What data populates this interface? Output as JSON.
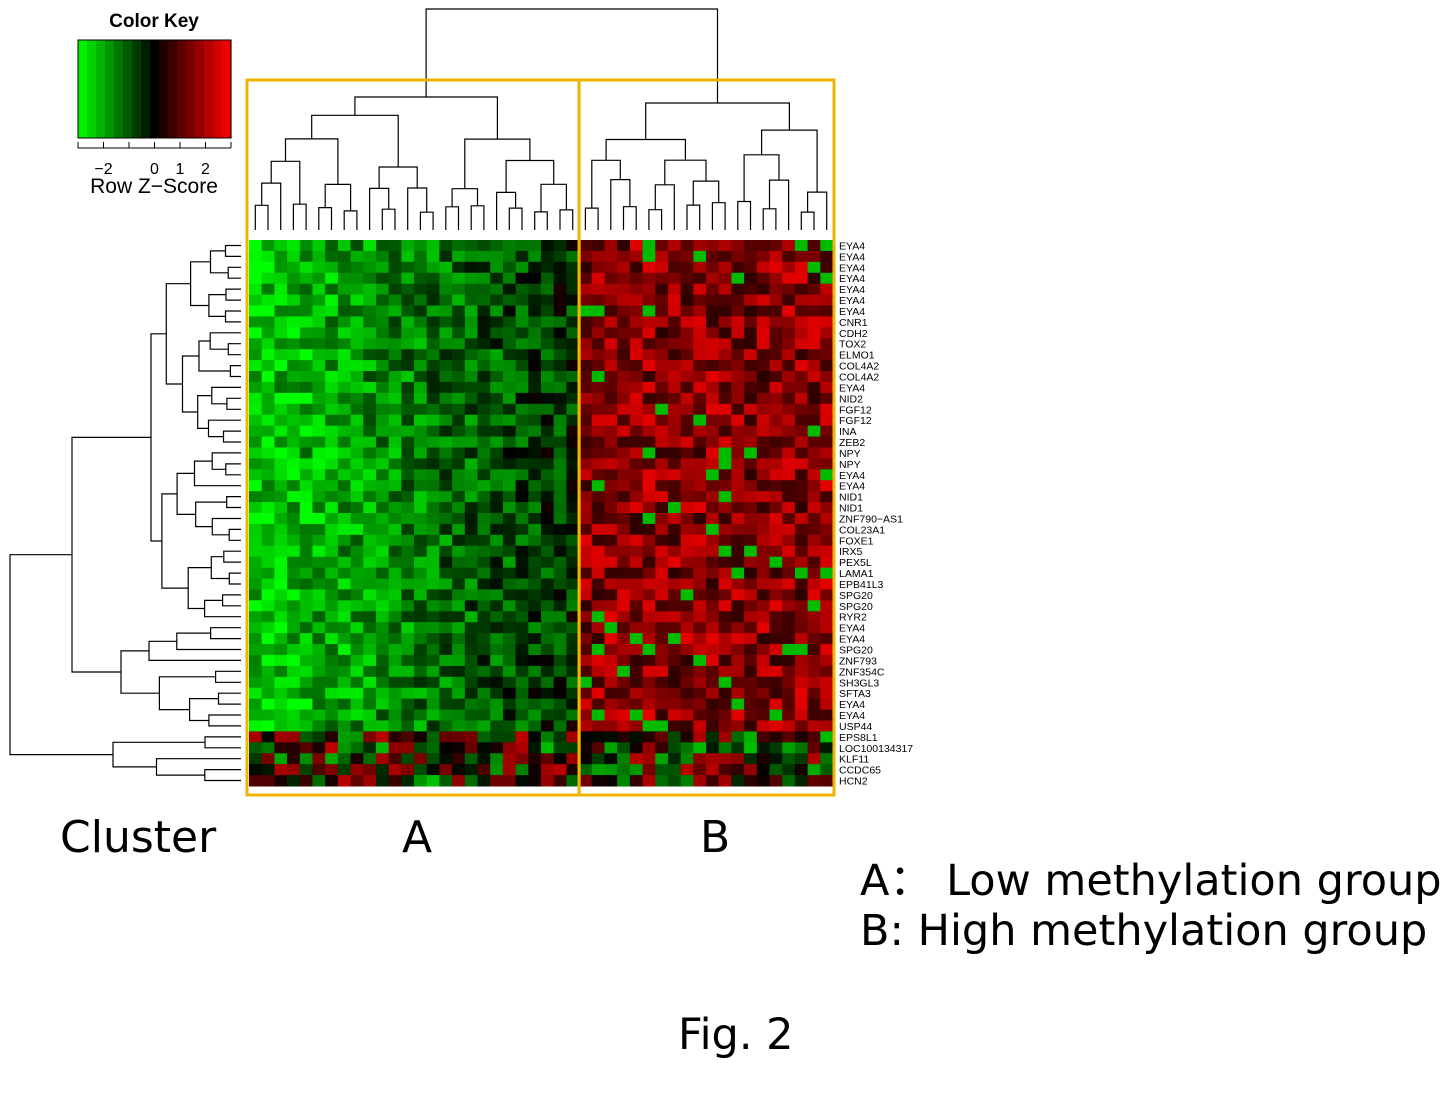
{
  "chart_data": {
    "type": "heatmap",
    "color_key": {
      "title": "Color Key",
      "xlabel": "Row Z−Score",
      "ticks": [
        "−2",
        "0",
        "1",
        "2"
      ],
      "tick_values": [
        -2,
        0,
        1,
        2
      ],
      "range": [
        -3,
        3
      ],
      "low_color": "#00ff00",
      "mid_color": "#000000",
      "high_color": "#ff0000"
    },
    "rows": [
      "EYA4",
      "EYA4",
      "EYA4",
      "EYA4",
      "EYA4",
      "EYA4",
      "EYA4",
      "CNR1",
      "CDH2",
      "TOX2",
      "ELMO1",
      "COL4A2",
      "COL4A2",
      "EYA4",
      "NID2",
      "FGF12",
      "FGF12",
      "INA",
      "ZEB2",
      "NPY",
      "NPY",
      "EYA4",
      "EYA4",
      "NID1",
      "NID1",
      "ZNF790−AS1",
      "COL23A1",
      "FOXE1",
      "IRX5",
      "PEX5L",
      "LAMA1",
      "EPB41L3",
      "SPG20",
      "SPG20",
      "RYR2",
      "EYA4",
      "EYA4",
      "SPG20",
      "ZNF793",
      "ZNF354C",
      "SH3GL3",
      "SFTA3",
      "EYA4",
      "EYA4",
      "USP44",
      "EPS8L1",
      "LOC100134317",
      "KLF11",
      "CCDC65",
      "HCN2"
    ],
    "columns_per_group": {
      "A": 26,
      "B": 20
    },
    "group_labels": [
      "A",
      "B"
    ],
    "row_axis_label": "Cluster",
    "legend": [
      "A： Low methylation group",
      "B:  High methylation group"
    ],
    "caption": "Fig. 2",
    "highlight_color": "#f0b400"
  }
}
